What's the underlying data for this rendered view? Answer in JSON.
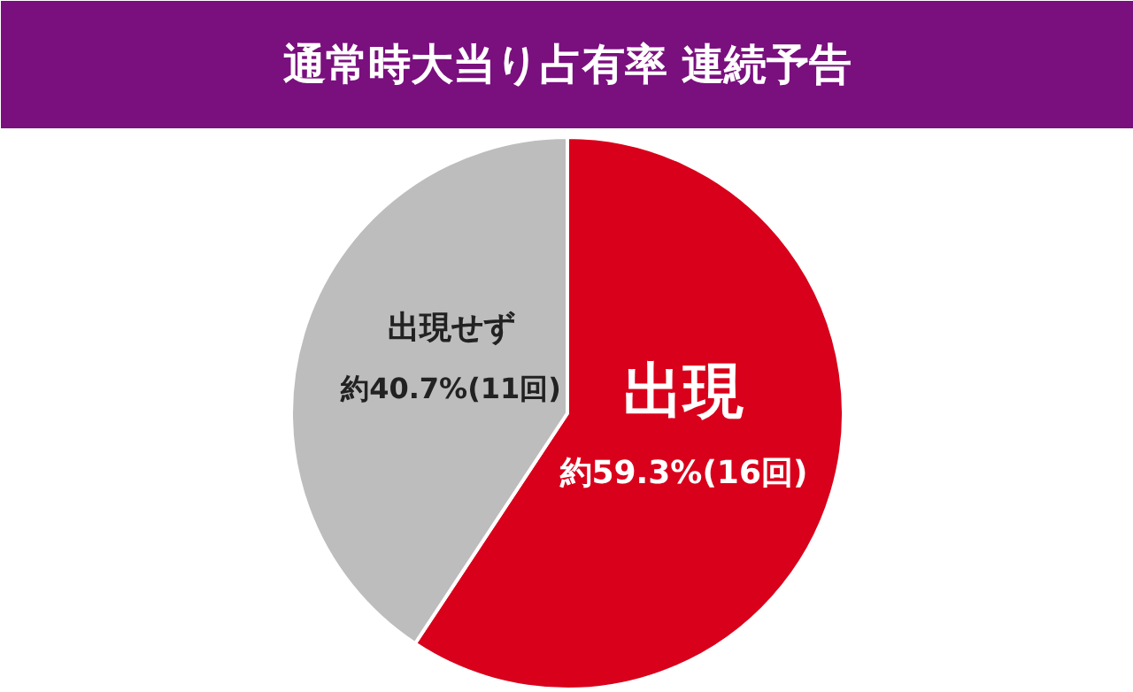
{
  "chart_data": {
    "type": "pie",
    "title": "通常時大当り占有率 連続予告",
    "categories": [
      "出現",
      "出現せず"
    ],
    "values": [
      59.3,
      40.7
    ],
    "colors": [
      "#d9001b",
      "#bdbdbd"
    ],
    "value_labels": [
      "約59.3%(16回)",
      "約40.7%(11回)"
    ]
  }
}
